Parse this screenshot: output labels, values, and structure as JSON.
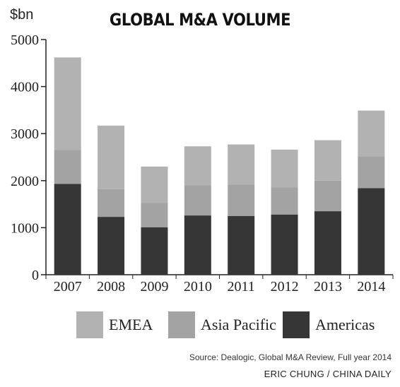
{
  "chart_data": {
    "type": "bar",
    "stacked": true,
    "title": "GLOBAL M&A VOLUME",
    "ylabel": "$bn",
    "xlabel": "",
    "ylim": [
      0,
      5000
    ],
    "yticks": [
      0,
      1000,
      2000,
      3000,
      4000,
      5000
    ],
    "grid": false,
    "legend_position": "bottom",
    "categories": [
      "2007",
      "2008",
      "2009",
      "2010",
      "2011",
      "2012",
      "2013",
      "2014"
    ],
    "series": [
      {
        "name": "Americas",
        "color": "#363636",
        "values": [
          1930,
          1230,
          1010,
          1260,
          1250,
          1280,
          1350,
          1840
        ]
      },
      {
        "name": "Asia Pacific",
        "color": "#a3a3a3",
        "values": [
          720,
          590,
          520,
          640,
          670,
          580,
          650,
          680
        ]
      },
      {
        "name": "EMEA",
        "color": "#b2b2b2",
        "values": [
          1970,
          1350,
          770,
          830,
          850,
          800,
          860,
          970
        ]
      }
    ]
  },
  "legend": [
    {
      "label": "EMEA",
      "color": "#b2b2b2"
    },
    {
      "label": "Asia Pacific",
      "color": "#a3a3a3"
    },
    {
      "label": "Americas",
      "color": "#363636"
    }
  ],
  "source": "Source: Dealogic, Global M&A Review, Full year 2014",
  "credit": "ERIC CHUNG / CHINA DAILY"
}
